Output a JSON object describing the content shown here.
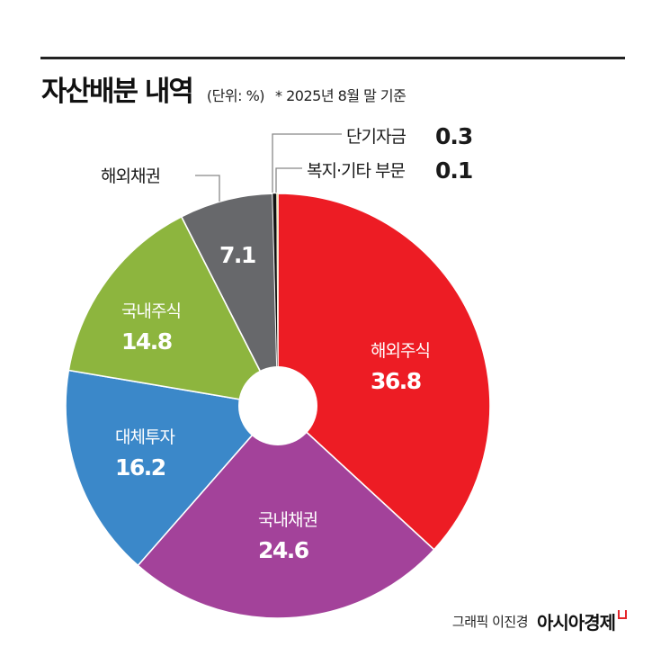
{
  "header": {
    "title": "자산배분 내역",
    "unit": "(단위: %)",
    "note": "* 2025년 8월 말 기준"
  },
  "credit": {
    "text": "그래픽 이진경",
    "brand": "아시아경제"
  },
  "chart_data": {
    "type": "pie",
    "title": "자산배분 내역",
    "subtitle": "(단위: %) * 2025년 8월 말 기준",
    "donut": true,
    "start_angle_deg": 0,
    "direction": "clockwise",
    "categories": [
      "해외주식",
      "국내채권",
      "대체투자",
      "국내주식",
      "해외채권",
      "단기자금",
      "복지·기타 부문"
    ],
    "values": [
      36.8,
      24.6,
      16.2,
      14.8,
      7.1,
      0.3,
      0.1
    ],
    "colors": [
      "#ED1C24",
      "#A3429A",
      "#3B88C9",
      "#8DB53E",
      "#67686B",
      "#111111",
      "#F3E3A0"
    ],
    "labels": [
      {
        "name": "해외주식",
        "value": "36.8",
        "position": "inside"
      },
      {
        "name": "국내채권",
        "value": "24.6",
        "position": "inside"
      },
      {
        "name": "대체투자",
        "value": "16.2",
        "position": "inside"
      },
      {
        "name": "국내주식",
        "value": "14.8",
        "position": "inside"
      },
      {
        "name": "해외채권",
        "value": "7.1",
        "position": "outside-name"
      },
      {
        "name": "단기자금",
        "value": "0.3",
        "position": "outside"
      },
      {
        "name": "복지·기타 부문",
        "value": "0.1",
        "position": "outside"
      }
    ]
  }
}
